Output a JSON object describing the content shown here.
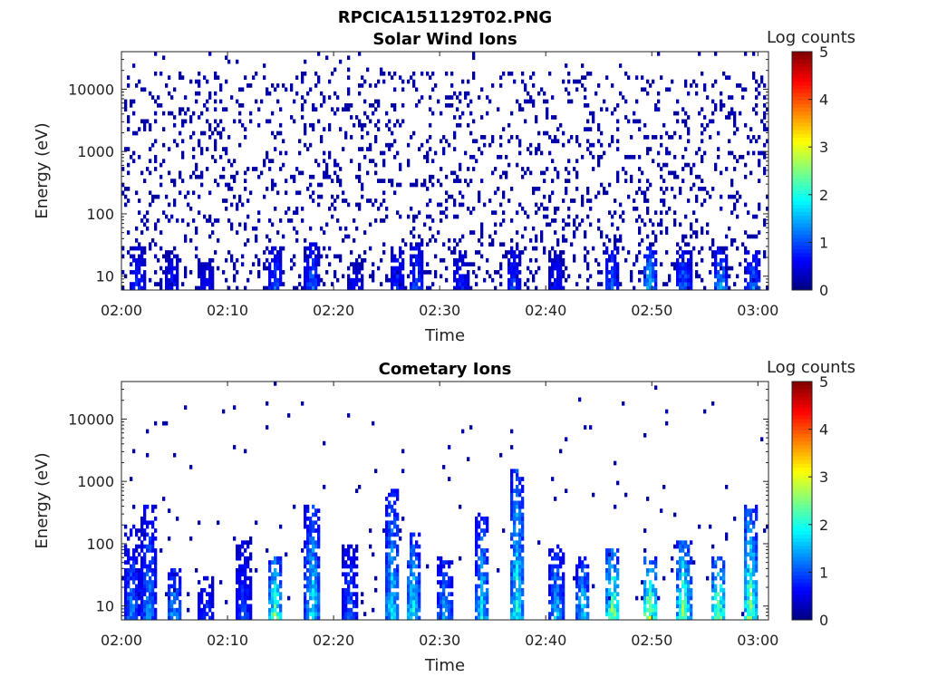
{
  "figure": {
    "filename": "RPCICA151129T02.PNG"
  },
  "colormap": {
    "name": "jet",
    "stops": [
      "#00007f",
      "#0000ff",
      "#007fff",
      "#00ffff",
      "#7fff7f",
      "#ffff00",
      "#ff7f00",
      "#ff0000",
      "#7f0000"
    ]
  },
  "chart_data": [
    {
      "type": "heatmap",
      "title": "Solar Wind Ions",
      "xlabel": "Time",
      "ylabel": "Energy (eV)",
      "x_ticks": [
        "02:00",
        "02:10",
        "02:20",
        "02:30",
        "02:40",
        "02:50",
        "03:00"
      ],
      "x_range": [
        "02:00",
        "03:00"
      ],
      "y_scale": "log",
      "y_ticks": [
        "10",
        "100",
        "1000",
        "10000"
      ],
      "y_range": [
        6,
        40000
      ],
      "colorbar": {
        "label": "Log counts",
        "range": [
          0,
          5
        ],
        "ticks": [
          "0",
          "1",
          "2",
          "3",
          "4",
          "5"
        ]
      },
      "grid": false,
      "background_level": 0.2,
      "background_density": 0.14,
      "bursts": [
        {
          "t": 1.5,
          "e_max": 30,
          "level": 0.9
        },
        {
          "t": 4.8,
          "e_max": 25,
          "level": 0.8
        },
        {
          "t": 8.0,
          "e_max": 20,
          "level": 0.7
        },
        {
          "t": 14.5,
          "e_max": 30,
          "level": 1.1
        },
        {
          "t": 18.0,
          "e_max": 35,
          "level": 1.2
        },
        {
          "t": 22.0,
          "e_max": 20,
          "level": 0.7
        },
        {
          "t": 26.0,
          "e_max": 30,
          "level": 0.9
        },
        {
          "t": 27.8,
          "e_max": 35,
          "level": 1.1
        },
        {
          "t": 32.0,
          "e_max": 25,
          "level": 0.8
        },
        {
          "t": 37.0,
          "e_max": 30,
          "level": 1.0
        },
        {
          "t": 41.0,
          "e_max": 25,
          "level": 0.8
        },
        {
          "t": 46.2,
          "e_max": 30,
          "level": 1.2
        },
        {
          "t": 49.8,
          "e_max": 30,
          "level": 1.6
        },
        {
          "t": 53.0,
          "e_max": 25,
          "level": 1.3
        },
        {
          "t": 56.5,
          "e_max": 30,
          "level": 1.5
        },
        {
          "t": 59.5,
          "e_max": 25,
          "level": 1.4
        }
      ]
    },
    {
      "type": "heatmap",
      "title": "Cometary Ions",
      "xlabel": "Time",
      "ylabel": "Energy (eV)",
      "x_ticks": [
        "02:00",
        "02:10",
        "02:20",
        "02:30",
        "02:40",
        "02:50",
        "03:00"
      ],
      "x_range": [
        "02:00",
        "03:00"
      ],
      "y_scale": "log",
      "y_ticks": [
        "10",
        "100",
        "1000",
        "10000"
      ],
      "y_range": [
        6,
        40000
      ],
      "colorbar": {
        "label": "Log counts",
        "range": [
          0,
          5
        ],
        "ticks": [
          "0",
          "1",
          "2",
          "3",
          "4",
          "5"
        ]
      },
      "grid": false,
      "background_level": 0.2,
      "background_density": 0.012,
      "bursts": [
        {
          "t": 1.0,
          "e_max": 200,
          "level": 1.3
        },
        {
          "t": 2.6,
          "e_max": 400,
          "level": 1.4
        },
        {
          "t": 5.0,
          "e_max": 40,
          "level": 1.6
        },
        {
          "t": 8.0,
          "e_max": 30,
          "level": 1.0
        },
        {
          "t": 11.5,
          "e_max": 120,
          "level": 1.1
        },
        {
          "t": 14.5,
          "e_max": 60,
          "level": 2.4
        },
        {
          "t": 18.0,
          "e_max": 400,
          "level": 2.0
        },
        {
          "t": 21.5,
          "e_max": 100,
          "level": 1.2
        },
        {
          "t": 25.5,
          "e_max": 800,
          "level": 1.8
        },
        {
          "t": 27.5,
          "e_max": 150,
          "level": 2.0
        },
        {
          "t": 30.5,
          "e_max": 60,
          "level": 1.6
        },
        {
          "t": 34.0,
          "e_max": 300,
          "level": 1.8
        },
        {
          "t": 37.3,
          "e_max": 1500,
          "level": 2.1
        },
        {
          "t": 41.0,
          "e_max": 100,
          "level": 1.7
        },
        {
          "t": 43.5,
          "e_max": 60,
          "level": 1.9
        },
        {
          "t": 46.3,
          "e_max": 80,
          "level": 2.7
        },
        {
          "t": 49.8,
          "e_max": 60,
          "level": 3.0
        },
        {
          "t": 53.0,
          "e_max": 120,
          "level": 2.6
        },
        {
          "t": 56.3,
          "e_max": 60,
          "level": 2.8
        },
        {
          "t": 59.3,
          "e_max": 400,
          "level": 2.5
        }
      ]
    }
  ]
}
